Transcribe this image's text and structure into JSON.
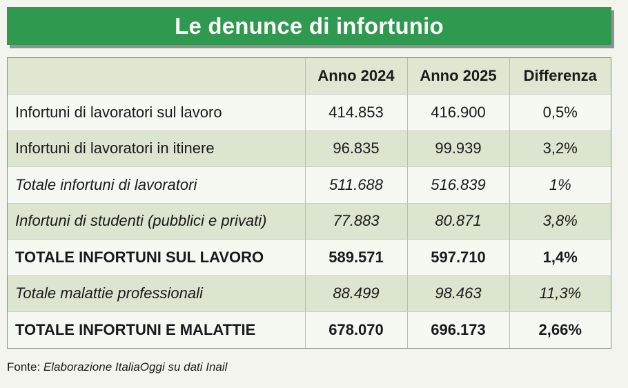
{
  "title": "Le denunce di infortunio",
  "chart_data": {
    "type": "table",
    "columns": [
      "",
      "Anno 2024",
      "Anno 2025",
      "Differenza"
    ],
    "rows": [
      {
        "label": "Infortuni di lavoratori sul lavoro",
        "v2024": "414.853",
        "v2025": "416.900",
        "diff": "0,5%",
        "style": "normal"
      },
      {
        "label": "Infortuni di lavoratori in itinere",
        "v2024": "96.835",
        "v2025": "99.939",
        "diff": "3,2%",
        "style": "normal"
      },
      {
        "label": "Totale infortuni di lavoratori",
        "v2024": "511.688",
        "v2025": "516.839",
        "diff": "1%",
        "style": "italic"
      },
      {
        "label": "Infortuni di studenti (pubblici e privati)",
        "v2024": "77.883",
        "v2025": "80.871",
        "diff": "3,8%",
        "style": "italic"
      },
      {
        "label": "TOTALE INFORTUNI SUL LAVORO",
        "v2024": "589.571",
        "v2025": "597.710",
        "diff": "1,4%",
        "style": "bold"
      },
      {
        "label": "Totale malattie professionali",
        "v2024": "88.499",
        "v2025": "98.463",
        "diff": "11,3%",
        "style": "italic"
      },
      {
        "label": "TOTALE INFORTUNI E MALATTIE",
        "v2024": "678.070",
        "v2025": "696.173",
        "diff": "2,66%",
        "style": "bold"
      }
    ]
  },
  "source": {
    "label": "Fonte:",
    "text": "Elaborazione ItaliaOggi su dati Inail"
  },
  "colors": {
    "title_bg": "#2f9a4f",
    "row_light": "#f6f8f2",
    "row_dark": "#dbe5cf"
  }
}
